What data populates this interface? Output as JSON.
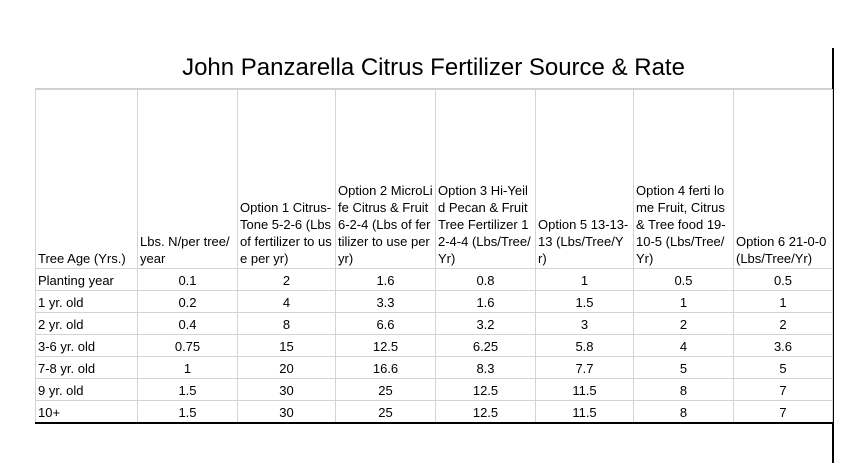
{
  "title": "John Panzarella Citrus Fertilizer Source & Rate",
  "table": {
    "headers": [
      "Tree Age (Yrs.)",
      "Lbs. N/per tree/year",
      "Option 1 Citrus-Tone 5-2-6 (Lbs of fertilizer to use per yr)",
      "Option 2 MicroLife Citrus & Fruit 6-2-4 (Lbs of fertilizer to use per yr)",
      "Option 3 Hi-Yeild Pecan & Fruit Tree Fertilizer 12-4-4 (Lbs/Tree/Yr)",
      "Option 5 13-13-13 (Lbs/Tree/Yr)",
      "Option 4 ferti lome Fruit, Citrus & Tree food 19-10-5 (Lbs/Tree/Yr)",
      "Option 6 21-0-0 (Lbs/Tree/Yr)"
    ],
    "rows": [
      [
        "Planting year",
        "0.1",
        "2",
        "1.6",
        "0.8",
        "1",
        "0.5",
        "0.5"
      ],
      [
        "1 yr. old",
        "0.2",
        "4",
        "3.3",
        "1.6",
        "1.5",
        "1",
        "1"
      ],
      [
        "2 yr. old",
        "0.4",
        "8",
        "6.6",
        "3.2",
        "3",
        "2",
        "2"
      ],
      [
        "3-6 yr. old",
        "0.75",
        "15",
        "12.5",
        "6.25",
        "5.8",
        "4",
        "3.6"
      ],
      [
        "7-8 yr. old",
        "1",
        "20",
        "16.6",
        "8.3",
        "7.7",
        "5",
        "5"
      ],
      [
        "9 yr. old",
        "1.5",
        "30",
        "25",
        "12.5",
        "11.5",
        "8",
        "7"
      ],
      [
        "10+",
        "1.5",
        "30",
        "25",
        "12.5",
        "11.5",
        "8",
        "7"
      ]
    ]
  }
}
